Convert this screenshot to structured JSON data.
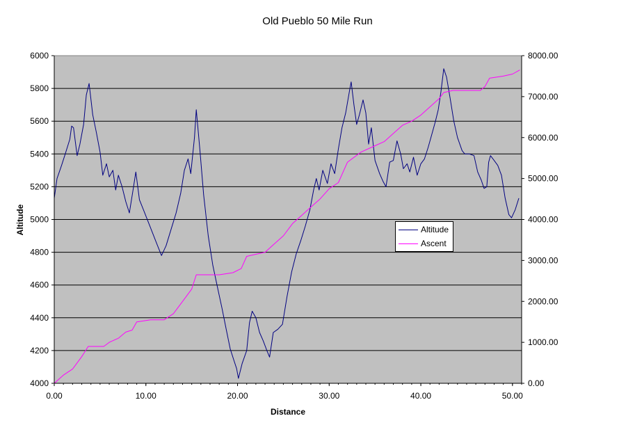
{
  "chart_data": {
    "type": "line",
    "title": "Old Pueblo 50 Mile Run",
    "xlabel": "Distance",
    "ylabel": "Altitude",
    "xlim": [
      0,
      51
    ],
    "ylim_left": [
      4000,
      6000
    ],
    "ylim_right": [
      0,
      8000
    ],
    "x_ticks": [
      "0.00",
      "10.00",
      "20.00",
      "30.00",
      "40.00",
      "50.00"
    ],
    "y_left_ticks": [
      "4000",
      "4200",
      "4400",
      "4600",
      "4800",
      "5000",
      "5200",
      "5400",
      "5600",
      "5800",
      "6000"
    ],
    "y_right_ticks": [
      "0.00",
      "1000.00",
      "2000.00",
      "3000.00",
      "4000.00",
      "5000.00",
      "6000.00",
      "7000.00",
      "8000.00"
    ],
    "grid": "horizontal",
    "plot_background": "#c0c0c0",
    "legend_position": "center-right",
    "series": [
      {
        "name": "Altitude",
        "axis": "left",
        "color": "#000080",
        "points": [
          [
            0,
            5130
          ],
          [
            0.3,
            5250
          ],
          [
            0.8,
            5330
          ],
          [
            1.2,
            5400
          ],
          [
            1.7,
            5490
          ],
          [
            1.9,
            5570
          ],
          [
            2.1,
            5560
          ],
          [
            2.5,
            5390
          ],
          [
            2.8,
            5460
          ],
          [
            3.2,
            5580
          ],
          [
            3.5,
            5760
          ],
          [
            3.8,
            5830
          ],
          [
            4.2,
            5640
          ],
          [
            4.6,
            5530
          ],
          [
            5.0,
            5410
          ],
          [
            5.3,
            5270
          ],
          [
            5.7,
            5340
          ],
          [
            6.0,
            5260
          ],
          [
            6.4,
            5300
          ],
          [
            6.7,
            5180
          ],
          [
            7.0,
            5270
          ],
          [
            7.4,
            5200
          ],
          [
            7.8,
            5110
          ],
          [
            8.2,
            5040
          ],
          [
            8.6,
            5180
          ],
          [
            8.9,
            5290
          ],
          [
            9.3,
            5120
          ],
          [
            9.8,
            5050
          ],
          [
            10.5,
            4950
          ],
          [
            11.2,
            4850
          ],
          [
            11.7,
            4780
          ],
          [
            12.2,
            4840
          ],
          [
            12.8,
            4950
          ],
          [
            13.3,
            5040
          ],
          [
            13.8,
            5160
          ],
          [
            14.2,
            5300
          ],
          [
            14.6,
            5370
          ],
          [
            14.9,
            5280
          ],
          [
            15.3,
            5500
          ],
          [
            15.5,
            5670
          ],
          [
            15.9,
            5420
          ],
          [
            16.3,
            5150
          ],
          [
            16.8,
            4900
          ],
          [
            17.3,
            4720
          ],
          [
            17.8,
            4590
          ],
          [
            18.3,
            4460
          ],
          [
            18.8,
            4320
          ],
          [
            19.2,
            4210
          ],
          [
            19.6,
            4140
          ],
          [
            19.9,
            4090
          ],
          [
            20.1,
            4030
          ],
          [
            20.5,
            4120
          ],
          [
            21.0,
            4200
          ],
          [
            21.3,
            4370
          ],
          [
            21.6,
            4440
          ],
          [
            22.0,
            4400
          ],
          [
            22.4,
            4310
          ],
          [
            22.8,
            4260
          ],
          [
            23.2,
            4200
          ],
          [
            23.5,
            4160
          ],
          [
            23.9,
            4310
          ],
          [
            24.4,
            4330
          ],
          [
            24.9,
            4360
          ],
          [
            25.4,
            4530
          ],
          [
            25.9,
            4680
          ],
          [
            26.4,
            4790
          ],
          [
            26.9,
            4870
          ],
          [
            27.4,
            4960
          ],
          [
            27.9,
            5060
          ],
          [
            28.3,
            5180
          ],
          [
            28.6,
            5250
          ],
          [
            28.9,
            5180
          ],
          [
            29.3,
            5300
          ],
          [
            29.8,
            5220
          ],
          [
            30.2,
            5340
          ],
          [
            30.6,
            5280
          ],
          [
            31.0,
            5430
          ],
          [
            31.4,
            5560
          ],
          [
            31.8,
            5650
          ],
          [
            32.2,
            5780
          ],
          [
            32.4,
            5840
          ],
          [
            32.7,
            5700
          ],
          [
            33.0,
            5580
          ],
          [
            33.3,
            5640
          ],
          [
            33.7,
            5730
          ],
          [
            34.0,
            5650
          ],
          [
            34.3,
            5460
          ],
          [
            34.6,
            5560
          ],
          [
            35.0,
            5360
          ],
          [
            35.5,
            5280
          ],
          [
            35.9,
            5230
          ],
          [
            36.2,
            5200
          ],
          [
            36.6,
            5350
          ],
          [
            37.0,
            5360
          ],
          [
            37.4,
            5480
          ],
          [
            37.8,
            5400
          ],
          [
            38.1,
            5310
          ],
          [
            38.5,
            5340
          ],
          [
            38.8,
            5290
          ],
          [
            39.2,
            5380
          ],
          [
            39.6,
            5270
          ],
          [
            40.0,
            5340
          ],
          [
            40.4,
            5370
          ],
          [
            40.8,
            5440
          ],
          [
            41.2,
            5520
          ],
          [
            41.6,
            5600
          ],
          [
            41.9,
            5670
          ],
          [
            42.2,
            5780
          ],
          [
            42.5,
            5920
          ],
          [
            42.8,
            5870
          ],
          [
            43.2,
            5740
          ],
          [
            43.6,
            5600
          ],
          [
            44.0,
            5500
          ],
          [
            44.5,
            5420
          ],
          [
            44.8,
            5400
          ],
          [
            45.3,
            5400
          ],
          [
            45.8,
            5390
          ],
          [
            46.2,
            5290
          ],
          [
            46.6,
            5240
          ],
          [
            46.9,
            5190
          ],
          [
            47.2,
            5200
          ],
          [
            47.4,
            5350
          ],
          [
            47.6,
            5390
          ],
          [
            48.0,
            5360
          ],
          [
            48.4,
            5330
          ],
          [
            48.8,
            5270
          ],
          [
            49.2,
            5130
          ],
          [
            49.6,
            5030
          ],
          [
            49.9,
            5010
          ],
          [
            50.3,
            5060
          ],
          [
            50.7,
            5130
          ]
        ]
      },
      {
        "name": "Ascent",
        "axis": "right",
        "color": "#ff00ff",
        "points": [
          [
            0,
            0
          ],
          [
            1,
            200
          ],
          [
            2,
            350
          ],
          [
            3,
            650
          ],
          [
            3.7,
            900
          ],
          [
            5.4,
            900
          ],
          [
            6,
            1000
          ],
          [
            7,
            1100
          ],
          [
            7.8,
            1250
          ],
          [
            8.5,
            1300
          ],
          [
            9,
            1500
          ],
          [
            10.5,
            1550
          ],
          [
            12,
            1550
          ],
          [
            13,
            1700
          ],
          [
            14,
            2000
          ],
          [
            15,
            2300
          ],
          [
            15.5,
            2650
          ],
          [
            16.5,
            2650
          ],
          [
            18,
            2650
          ],
          [
            19.5,
            2700
          ],
          [
            20.4,
            2800
          ],
          [
            21,
            3100
          ],
          [
            22,
            3150
          ],
          [
            23,
            3200
          ],
          [
            24,
            3400
          ],
          [
            25,
            3600
          ],
          [
            26,
            3900
          ],
          [
            27,
            4100
          ],
          [
            28,
            4300
          ],
          [
            29,
            4500
          ],
          [
            30,
            4750
          ],
          [
            31,
            4900
          ],
          [
            32,
            5400
          ],
          [
            33.5,
            5650
          ],
          [
            35,
            5800
          ],
          [
            36,
            5900
          ],
          [
            37,
            6100
          ],
          [
            38,
            6300
          ],
          [
            39,
            6400
          ],
          [
            40,
            6550
          ],
          [
            41,
            6750
          ],
          [
            42,
            6950
          ],
          [
            42.5,
            7100
          ],
          [
            43.5,
            7150
          ],
          [
            44,
            7150
          ],
          [
            46.5,
            7150
          ],
          [
            47,
            7250
          ],
          [
            47.5,
            7450
          ],
          [
            49,
            7500
          ],
          [
            50,
            7550
          ],
          [
            50.8,
            7650
          ]
        ]
      }
    ]
  }
}
